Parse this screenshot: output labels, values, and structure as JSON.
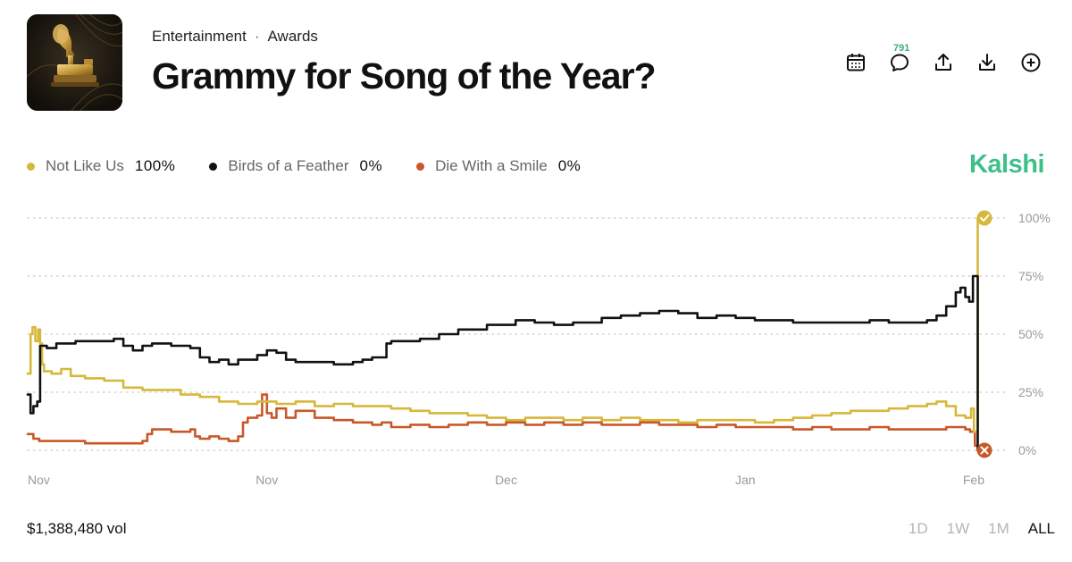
{
  "header": {
    "category": "Entertainment",
    "subcategory": "Awards",
    "separator": "·",
    "title": "Grammy for Song of the Year?"
  },
  "toolbar": {
    "items": [
      "calendar-icon",
      "comment-icon",
      "share-icon",
      "download-icon",
      "add-icon"
    ],
    "comment_count": "791"
  },
  "brand": {
    "name": "Kalshi",
    "color": "#3ec089"
  },
  "legend": [
    {
      "name": "Not Like Us",
      "value": "100%",
      "color": "#d6b83a"
    },
    {
      "name": "Birds of a Feather",
      "value": "0%",
      "color": "#111111"
    },
    {
      "name": "Die With a Smile",
      "value": "0%",
      "color": "#c8582a"
    }
  ],
  "footer": {
    "volume": "$1,388,480 vol",
    "ranges": [
      "1D",
      "1W",
      "1M",
      "ALL"
    ],
    "active_range": "ALL"
  },
  "chart_data": {
    "type": "line",
    "x_ticks": [
      "Nov",
      "Nov",
      "Dec",
      "Jan",
      "Feb"
    ],
    "y_ticks": [
      "100%",
      "75%",
      "50%",
      "25%",
      "0%"
    ],
    "ylim": [
      0,
      100
    ],
    "x_range": [
      0,
      100
    ],
    "grid": true,
    "series": [
      {
        "name": "Not Like Us",
        "color": "#d6b83a",
        "points": [
          [
            0,
            33
          ],
          [
            0.3,
            50
          ],
          [
            0.5,
            53
          ],
          [
            0.8,
            47
          ],
          [
            1.1,
            52
          ],
          [
            1.3,
            46
          ],
          [
            1.5,
            37
          ],
          [
            1.7,
            34
          ],
          [
            2.5,
            33
          ],
          [
            3.5,
            35
          ],
          [
            4.5,
            32
          ],
          [
            6,
            31
          ],
          [
            8,
            30
          ],
          [
            10,
            27
          ],
          [
            12,
            26
          ],
          [
            14,
            26
          ],
          [
            16,
            24
          ],
          [
            18,
            23
          ],
          [
            20,
            21
          ],
          [
            22,
            20
          ],
          [
            24,
            21
          ],
          [
            26,
            20
          ],
          [
            28,
            21
          ],
          [
            30,
            19
          ],
          [
            32,
            20
          ],
          [
            34,
            19
          ],
          [
            36,
            19
          ],
          [
            38,
            18
          ],
          [
            40,
            17
          ],
          [
            42,
            16
          ],
          [
            44,
            16
          ],
          [
            46,
            15
          ],
          [
            48,
            14
          ],
          [
            50,
            13
          ],
          [
            52,
            14
          ],
          [
            54,
            14
          ],
          [
            56,
            13
          ],
          [
            58,
            14
          ],
          [
            60,
            13
          ],
          [
            62,
            14
          ],
          [
            64,
            13
          ],
          [
            66,
            13
          ],
          [
            68,
            12
          ],
          [
            70,
            13
          ],
          [
            72,
            13
          ],
          [
            74,
            13
          ],
          [
            76,
            12
          ],
          [
            78,
            13
          ],
          [
            80,
            14
          ],
          [
            82,
            15
          ],
          [
            84,
            16
          ],
          [
            86,
            17
          ],
          [
            88,
            17
          ],
          [
            90,
            18
          ],
          [
            92,
            19
          ],
          [
            94,
            20
          ],
          [
            95,
            21
          ],
          [
            96,
            19
          ],
          [
            97,
            15
          ],
          [
            98,
            14
          ],
          [
            98.6,
            18
          ],
          [
            98.9,
            8
          ],
          [
            99.3,
            100
          ],
          [
            100,
            100
          ]
        ]
      },
      {
        "name": "Birds of a Feather",
        "color": "#111111",
        "points": [
          [
            0,
            24
          ],
          [
            0.3,
            16
          ],
          [
            0.6,
            19
          ],
          [
            1.0,
            21
          ],
          [
            1.3,
            45
          ],
          [
            2,
            44
          ],
          [
            3,
            46
          ],
          [
            5,
            47
          ],
          [
            7,
            47
          ],
          [
            9,
            48
          ],
          [
            10,
            45
          ],
          [
            11,
            43
          ],
          [
            12,
            45
          ],
          [
            13,
            46
          ],
          [
            15,
            45
          ],
          [
            17,
            44
          ],
          [
            18,
            40
          ],
          [
            19,
            38
          ],
          [
            20,
            39
          ],
          [
            21,
            37
          ],
          [
            22,
            39
          ],
          [
            24,
            41
          ],
          [
            25,
            43
          ],
          [
            26,
            42
          ],
          [
            27,
            39
          ],
          [
            28,
            38
          ],
          [
            30,
            38
          ],
          [
            32,
            37
          ],
          [
            34,
            38
          ],
          [
            35,
            39
          ],
          [
            36,
            40
          ],
          [
            37,
            40
          ],
          [
            37.5,
            46
          ],
          [
            38,
            47
          ],
          [
            40,
            47
          ],
          [
            41,
            48
          ],
          [
            43,
            50
          ],
          [
            45,
            52
          ],
          [
            48,
            54
          ],
          [
            51,
            56
          ],
          [
            53,
            55
          ],
          [
            55,
            54
          ],
          [
            57,
            55
          ],
          [
            60,
            57
          ],
          [
            62,
            58
          ],
          [
            64,
            59
          ],
          [
            66,
            60
          ],
          [
            68,
            59
          ],
          [
            70,
            57
          ],
          [
            72,
            58
          ],
          [
            74,
            57
          ],
          [
            76,
            56
          ],
          [
            78,
            56
          ],
          [
            80,
            55
          ],
          [
            82,
            55
          ],
          [
            84,
            55
          ],
          [
            86,
            55
          ],
          [
            88,
            56
          ],
          [
            90,
            55
          ],
          [
            92,
            55
          ],
          [
            94,
            56
          ],
          [
            95,
            58
          ],
          [
            96,
            62
          ],
          [
            97,
            68
          ],
          [
            97.5,
            70
          ],
          [
            98,
            66
          ],
          [
            98.4,
            64
          ],
          [
            98.8,
            75
          ],
          [
            99.1,
            75
          ],
          [
            99.3,
            0
          ],
          [
            100,
            0
          ]
        ]
      },
      {
        "name": "Die With a Smile",
        "color": "#c8582a",
        "points": [
          [
            0,
            7
          ],
          [
            0.6,
            5
          ],
          [
            1.2,
            4
          ],
          [
            3,
            4
          ],
          [
            6,
            3
          ],
          [
            9,
            3
          ],
          [
            12,
            4
          ],
          [
            12.5,
            7
          ],
          [
            13,
            9
          ],
          [
            15,
            8
          ],
          [
            17,
            9
          ],
          [
            17.5,
            6
          ],
          [
            18,
            5
          ],
          [
            19,
            6
          ],
          [
            20,
            5
          ],
          [
            21,
            4
          ],
          [
            22,
            6
          ],
          [
            22.5,
            12
          ],
          [
            23,
            14
          ],
          [
            24,
            15
          ],
          [
            24.5,
            24
          ],
          [
            25,
            16
          ],
          [
            25.5,
            14
          ],
          [
            26,
            18
          ],
          [
            27,
            14
          ],
          [
            28,
            17
          ],
          [
            29,
            17
          ],
          [
            30,
            14
          ],
          [
            32,
            13
          ],
          [
            34,
            12
          ],
          [
            36,
            11
          ],
          [
            37,
            12
          ],
          [
            38,
            10
          ],
          [
            40,
            11
          ],
          [
            42,
            10
          ],
          [
            44,
            11
          ],
          [
            46,
            12
          ],
          [
            48,
            11
          ],
          [
            50,
            12
          ],
          [
            52,
            11
          ],
          [
            54,
            12
          ],
          [
            56,
            11
          ],
          [
            58,
            12
          ],
          [
            60,
            11
          ],
          [
            62,
            11
          ],
          [
            64,
            12
          ],
          [
            66,
            11
          ],
          [
            68,
            11
          ],
          [
            70,
            10
          ],
          [
            72,
            11
          ],
          [
            74,
            10
          ],
          [
            76,
            10
          ],
          [
            78,
            10
          ],
          [
            80,
            9
          ],
          [
            82,
            10
          ],
          [
            84,
            9
          ],
          [
            86,
            9
          ],
          [
            88,
            10
          ],
          [
            90,
            9
          ],
          [
            92,
            9
          ],
          [
            94,
            9
          ],
          [
            96,
            10
          ],
          [
            98,
            9
          ],
          [
            98.5,
            8
          ],
          [
            99,
            2
          ],
          [
            99.3,
            0
          ],
          [
            100,
            0
          ]
        ]
      }
    ],
    "end_markers": [
      {
        "series": "Not Like Us",
        "value": 100,
        "marker": "check"
      },
      {
        "series": "Die With a Smile",
        "value": 0,
        "marker": "x"
      }
    ]
  }
}
